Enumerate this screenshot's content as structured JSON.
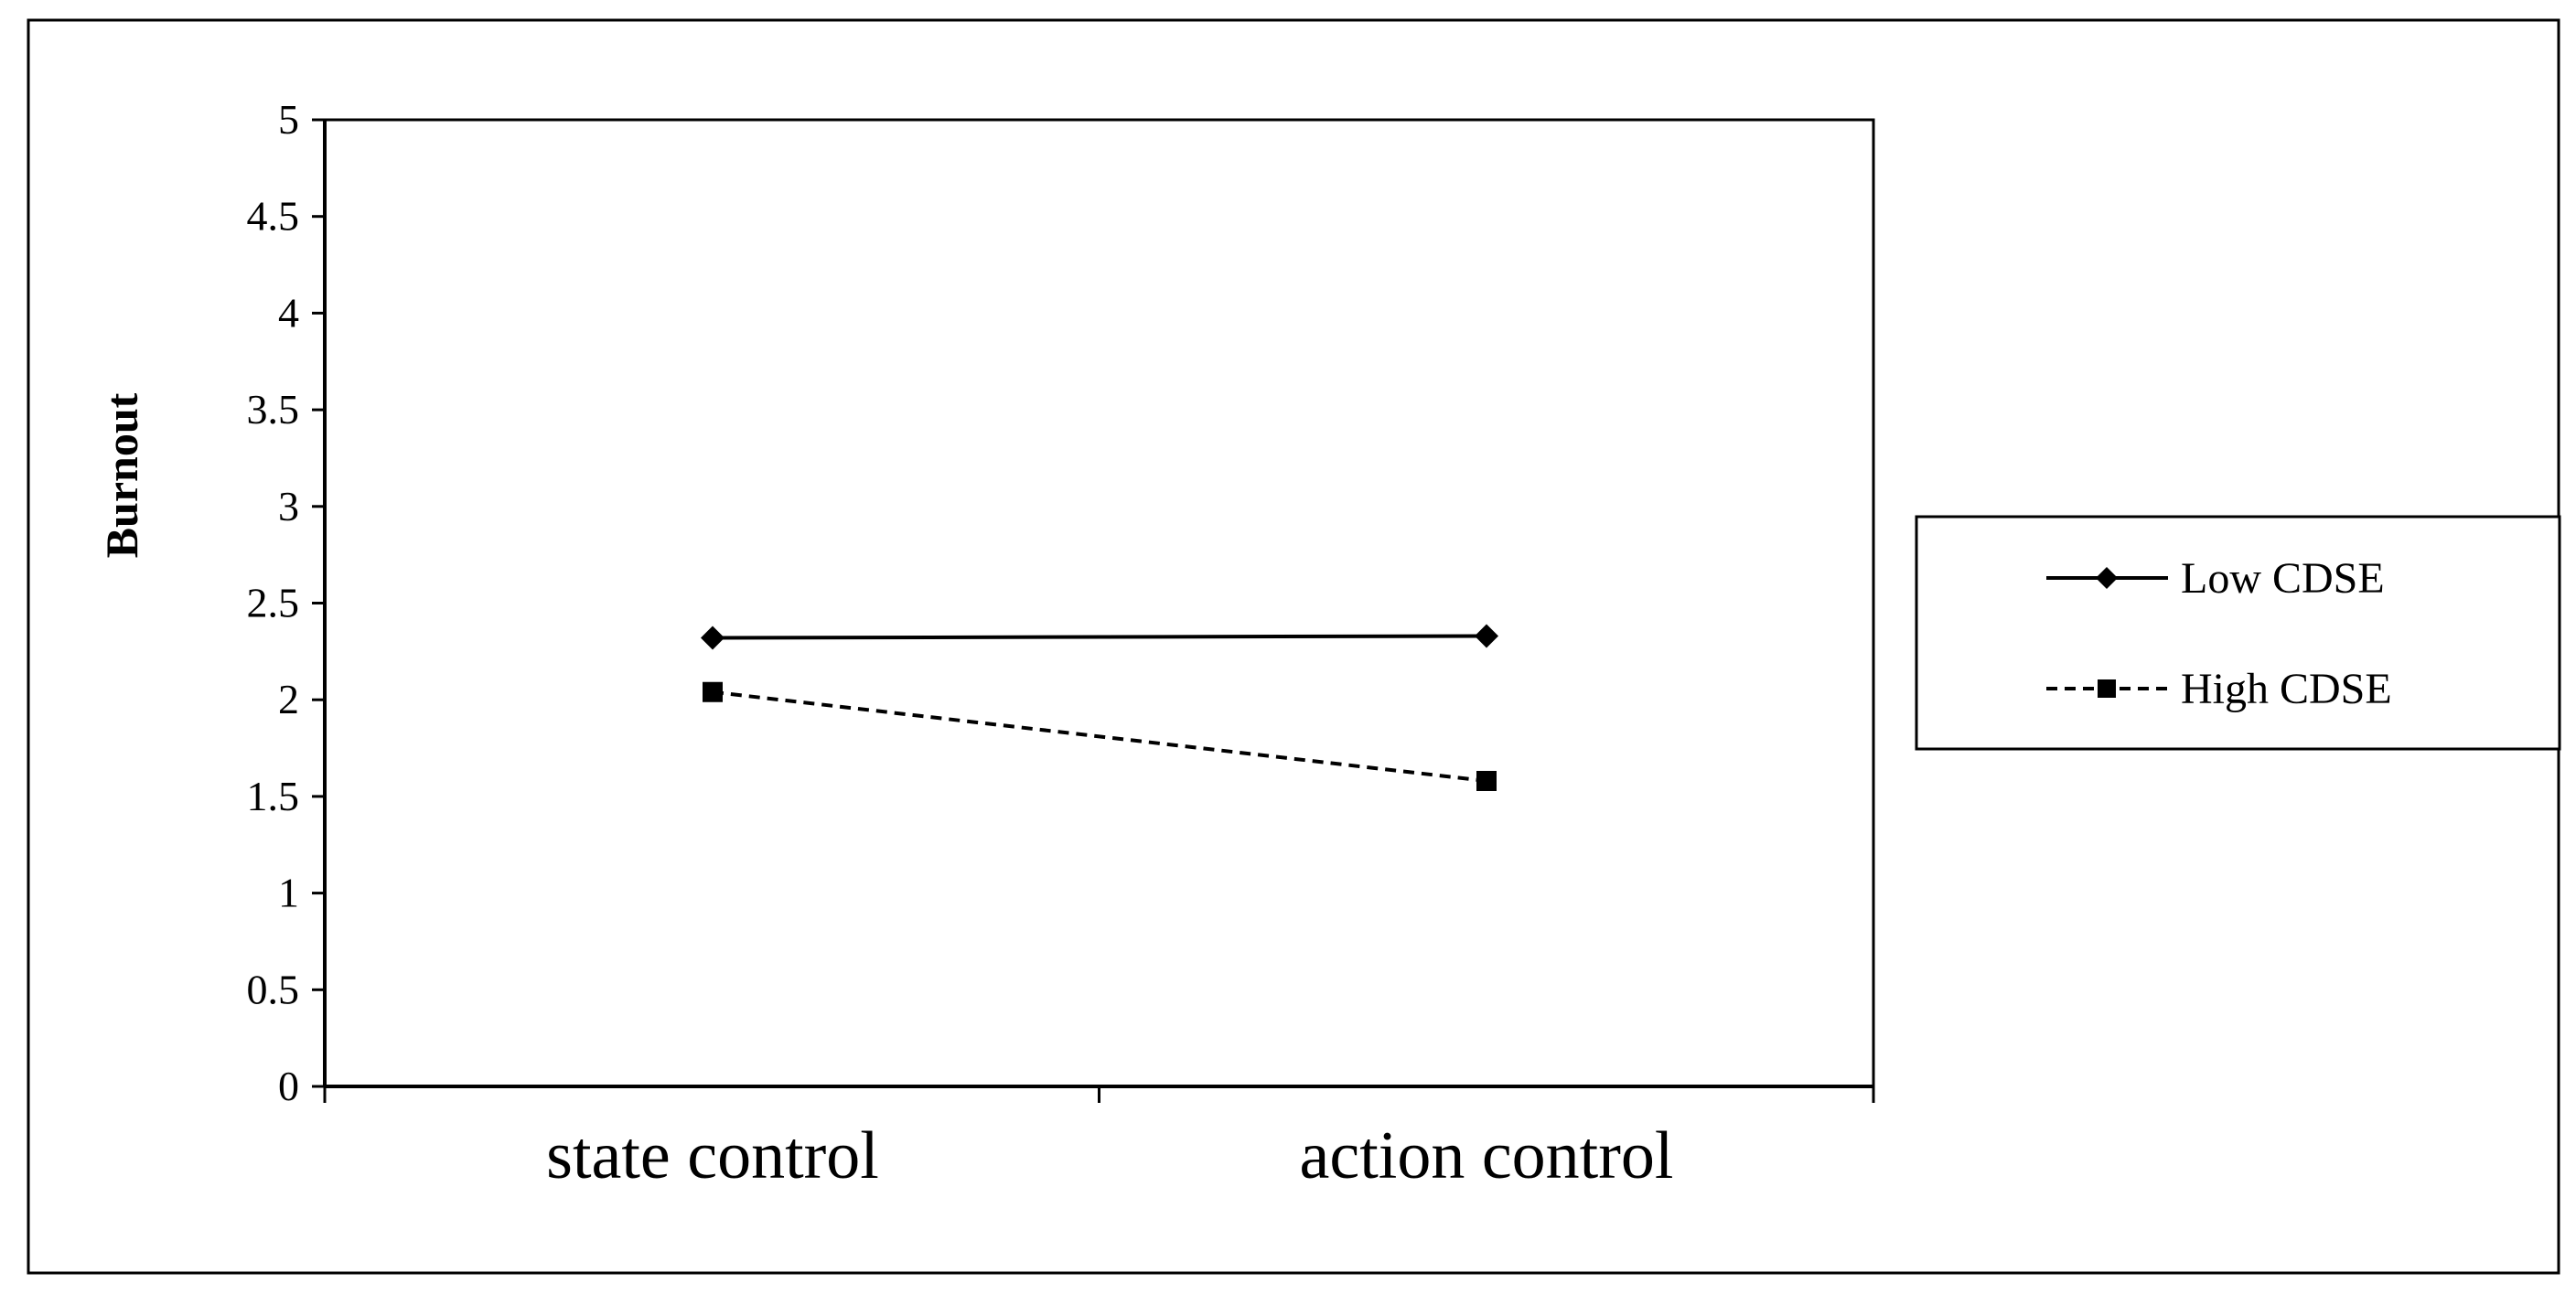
{
  "chart_data": {
    "type": "line",
    "title": "",
    "xlabel": "",
    "ylabel": "Burnout",
    "categories": [
      "state control",
      "action control"
    ],
    "ylim": [
      0,
      5
    ],
    "yticks": [
      0,
      0.5,
      1,
      1.5,
      2,
      2.5,
      3,
      3.5,
      4,
      4.5,
      5
    ],
    "ytick_labels": [
      "0",
      "0.5",
      "1",
      "1.5",
      "2",
      "2.5",
      "3",
      "3.5",
      "4",
      "4.5",
      "5"
    ],
    "grid": false,
    "legend_position": "right",
    "series": [
      {
        "name": "Low CDSE",
        "values": [
          2.32,
          2.33
        ],
        "line_style": "solid",
        "marker": "diamond",
        "color": "#000000"
      },
      {
        "name": "High CDSE",
        "values": [
          2.04,
          1.58
        ],
        "line_style": "dashed",
        "marker": "square",
        "color": "#000000"
      }
    ]
  }
}
